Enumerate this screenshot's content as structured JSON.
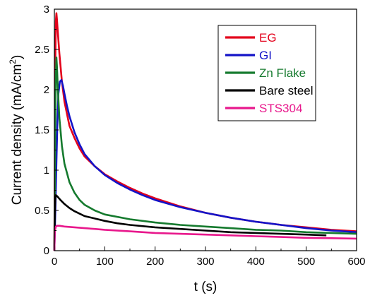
{
  "chart_data": {
    "type": "line",
    "xlabel": "t (s)",
    "ylabel": {
      "main": "Current density (mA/cm",
      "sup": "2",
      "tail": ")"
    },
    "xlim": [
      0,
      600
    ],
    "ylim": [
      0,
      3
    ],
    "x_ticks": [
      "0",
      "100",
      "200",
      "300",
      "400",
      "500",
      "600"
    ],
    "y_ticks": [
      "0",
      "0.5",
      "1",
      "1.5",
      "2",
      "2.5",
      "3"
    ],
    "grid": false,
    "legend_position": "top-right",
    "series": [
      {
        "name": "EG",
        "color": "#e3001b",
        "points": [
          [
            0,
            0
          ],
          [
            1,
            1.2
          ],
          [
            2,
            2.4
          ],
          [
            3,
            2.85
          ],
          [
            4,
            2.95
          ],
          [
            5,
            2.88
          ],
          [
            7,
            2.7
          ],
          [
            10,
            2.45
          ],
          [
            15,
            2.1
          ],
          [
            20,
            1.85
          ],
          [
            30,
            1.55
          ],
          [
            40,
            1.4
          ],
          [
            50,
            1.27
          ],
          [
            60,
            1.17
          ],
          [
            80,
            1.05
          ],
          [
            100,
            0.95
          ],
          [
            125,
            0.86
          ],
          [
            150,
            0.78
          ],
          [
            175,
            0.71
          ],
          [
            200,
            0.65
          ],
          [
            250,
            0.55
          ],
          [
            300,
            0.47
          ],
          [
            350,
            0.41
          ],
          [
            400,
            0.36
          ],
          [
            450,
            0.32
          ],
          [
            500,
            0.29
          ],
          [
            550,
            0.26
          ],
          [
            600,
            0.24
          ]
        ]
      },
      {
        "name": "GI",
        "color": "#1313c8",
        "points": [
          [
            0,
            0
          ],
          [
            2,
            0.5
          ],
          [
            4,
            1.1
          ],
          [
            6,
            1.6
          ],
          [
            8,
            1.95
          ],
          [
            11,
            2.1
          ],
          [
            14,
            2.12
          ],
          [
            17,
            2.05
          ],
          [
            20,
            1.95
          ],
          [
            25,
            1.8
          ],
          [
            30,
            1.67
          ],
          [
            40,
            1.47
          ],
          [
            50,
            1.32
          ],
          [
            60,
            1.2
          ],
          [
            80,
            1.05
          ],
          [
            100,
            0.94
          ],
          [
            125,
            0.84
          ],
          [
            150,
            0.76
          ],
          [
            175,
            0.69
          ],
          [
            200,
            0.63
          ],
          [
            250,
            0.54
          ],
          [
            300,
            0.47
          ],
          [
            350,
            0.41
          ],
          [
            400,
            0.36
          ],
          [
            450,
            0.32
          ],
          [
            500,
            0.28
          ],
          [
            550,
            0.25
          ],
          [
            600,
            0.23
          ]
        ]
      },
      {
        "name": "Zn Flake",
        "color": "#157a2e",
        "points": [
          [
            0,
            0
          ],
          [
            1,
            0.8
          ],
          [
            2,
            1.6
          ],
          [
            3,
            2.2
          ],
          [
            4,
            2.4
          ],
          [
            5,
            2.3
          ],
          [
            7,
            2.0
          ],
          [
            10,
            1.65
          ],
          [
            15,
            1.3
          ],
          [
            20,
            1.08
          ],
          [
            30,
            0.85
          ],
          [
            40,
            0.72
          ],
          [
            50,
            0.63
          ],
          [
            60,
            0.57
          ],
          [
            80,
            0.5
          ],
          [
            100,
            0.45
          ],
          [
            150,
            0.39
          ],
          [
            200,
            0.35
          ],
          [
            250,
            0.32
          ],
          [
            300,
            0.3
          ],
          [
            350,
            0.28
          ],
          [
            400,
            0.26
          ],
          [
            450,
            0.25
          ],
          [
            500,
            0.23
          ],
          [
            550,
            0.22
          ],
          [
            600,
            0.21
          ]
        ]
      },
      {
        "name": "Bare steel",
        "color": "#000000",
        "points": [
          [
            0,
            0
          ],
          [
            1,
            0.5
          ],
          [
            2,
            0.65
          ],
          [
            3,
            0.69
          ],
          [
            5,
            0.68
          ],
          [
            8,
            0.66
          ],
          [
            12,
            0.63
          ],
          [
            20,
            0.58
          ],
          [
            30,
            0.53
          ],
          [
            40,
            0.49
          ],
          [
            50,
            0.46
          ],
          [
            60,
            0.43
          ],
          [
            80,
            0.4
          ],
          [
            100,
            0.37
          ],
          [
            125,
            0.34
          ],
          [
            150,
            0.32
          ],
          [
            200,
            0.29
          ],
          [
            250,
            0.27
          ],
          [
            300,
            0.25
          ],
          [
            350,
            0.23
          ],
          [
            400,
            0.22
          ],
          [
            450,
            0.21
          ],
          [
            500,
            0.2
          ],
          [
            540,
            0.19
          ]
        ]
      },
      {
        "name": "STS304",
        "color": "#e8188c",
        "points": [
          [
            0,
            0
          ],
          [
            1,
            0.25
          ],
          [
            3,
            0.3
          ],
          [
            5,
            0.31
          ],
          [
            10,
            0.31
          ],
          [
            20,
            0.3
          ],
          [
            40,
            0.29
          ],
          [
            60,
            0.28
          ],
          [
            80,
            0.27
          ],
          [
            100,
            0.26
          ],
          [
            150,
            0.24
          ],
          [
            200,
            0.22
          ],
          [
            250,
            0.21
          ],
          [
            300,
            0.2
          ],
          [
            350,
            0.19
          ],
          [
            400,
            0.18
          ],
          [
            450,
            0.17
          ],
          [
            500,
            0.16
          ],
          [
            550,
            0.155
          ],
          [
            600,
            0.15
          ]
        ]
      }
    ]
  }
}
